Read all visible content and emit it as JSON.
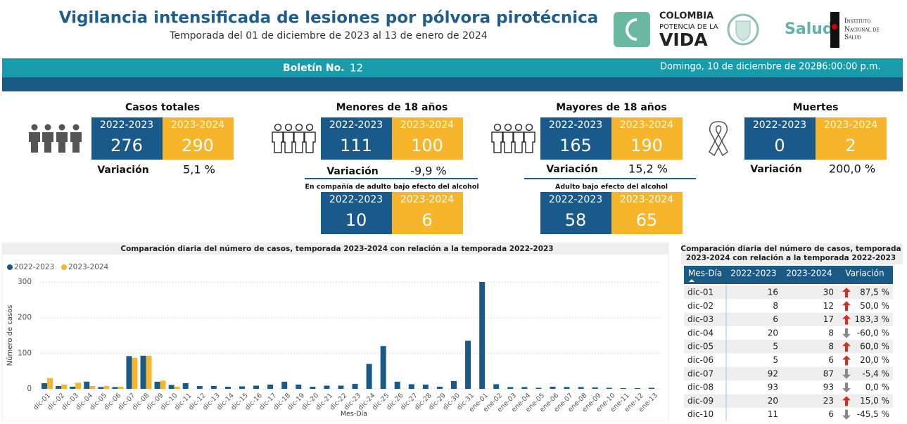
{
  "header": {
    "title": "Vigilancia intensificada de lesiones por pólvora pirotécnica",
    "subtitle": "Temporada del 01 de diciembre de 2023 al 13 de enero de 2024",
    "logo_colombia": [
      "COLOMBIA",
      "POTENCIA DE LA",
      "VIDA"
    ],
    "logo_salud": "Salud",
    "logo_ins": [
      "Instituto",
      "Nacional de",
      "Salud"
    ]
  },
  "banner": {
    "label": "Boletín No.",
    "number": 12,
    "date": "Domingo, 10 de diciembre de 2023",
    "time": "06:00:00 p.m."
  },
  "kpis": [
    {
      "title": "Casos totales",
      "labels": [
        "2022-2023",
        "2023-2024"
      ],
      "values": [
        276,
        290
      ],
      "variation_label": "Variación",
      "variation": "5,1 %"
    },
    {
      "title": "Menores de 18 años",
      "labels": [
        "2022-2023",
        "2023-2024"
      ],
      "values": [
        111,
        100
      ],
      "variation_label": "Variación",
      "variation": "-9,9 %"
    },
    {
      "title": "Mayores de 18 años",
      "labels": [
        "2022-2023",
        "2023-2024"
      ],
      "values": [
        165,
        190
      ],
      "variation_label": "Variación",
      "variation": "15,2 %"
    },
    {
      "title": "Muertes",
      "labels": [
        "2022-2023",
        "2023-2024"
      ],
      "values": [
        0,
        2
      ],
      "variation_label": "Variación",
      "variation": "200,0 %"
    }
  ],
  "sub_kpis": [
    {
      "title": "En compañía de adulto bajo efecto del alcohol",
      "labels": [
        "2022-2023",
        "2023-2024"
      ],
      "values": [
        10,
        6
      ]
    },
    {
      "title": "Adulto bajo efecto del alcohol",
      "labels": [
        "2022-2023",
        "2023-2024"
      ],
      "values": [
        58,
        65
      ]
    }
  ],
  "chart_data": {
    "type": "bar",
    "title": "Comparación diaria del número de casos, temporada 2023-2024 con relación a la temporada 2022-2023",
    "xlabel": "Mes-Día",
    "ylabel": "Número de casos",
    "ylim": [
      0,
      300
    ],
    "yticks": [
      0,
      100,
      200,
      300
    ],
    "grid": true,
    "legend": "top-left",
    "categories": [
      "dic-01",
      "dic-02",
      "dic-03",
      "dic-04",
      "dic-05",
      "dic-06",
      "dic-07",
      "dic-08",
      "dic-09",
      "dic-10",
      "dic-11",
      "dic-12",
      "dic-13",
      "dic-14",
      "dic-15",
      "dic-16",
      "dic-17",
      "dic-18",
      "dic-19",
      "dic-20",
      "dic-21",
      "dic-22",
      "dic-23",
      "dic-24",
      "dic-25",
      "dic-26",
      "dic-27",
      "dic-28",
      "dic-29",
      "dic-30",
      "dic-31",
      "ene-01",
      "ene-02",
      "ene-03",
      "ene-04",
      "ene-05",
      "ene-06",
      "ene-07",
      "ene-08",
      "ene-09",
      "ene-10",
      "ene-11",
      "ene-12",
      "ene-13"
    ],
    "series": [
      {
        "name": "2022-2023",
        "color": "#1a5a8a",
        "values": [
          16,
          8,
          6,
          20,
          5,
          5,
          92,
          93,
          20,
          11,
          16,
          8,
          8,
          6,
          7,
          9,
          12,
          20,
          12,
          6,
          9,
          9,
          14,
          70,
          120,
          20,
          13,
          12,
          6,
          22,
          135,
          300,
          13,
          5,
          5,
          3,
          6,
          5,
          5,
          4,
          3,
          2,
          2,
          3
        ]
      },
      {
        "name": "2023-2024",
        "color": "#f7b52c",
        "values": [
          30,
          12,
          17,
          8,
          8,
          6,
          87,
          93,
          23,
          6,
          null,
          null,
          null,
          null,
          null,
          null,
          null,
          null,
          null,
          null,
          null,
          null,
          null,
          null,
          null,
          null,
          null,
          null,
          null,
          null,
          null,
          null,
          null,
          null,
          null,
          null,
          null,
          null,
          null,
          null,
          null,
          null,
          null,
          null
        ]
      }
    ]
  },
  "table": {
    "title": [
      "Comparación diaria del número de casos, temporada",
      "2023-2024 con relación a la temporada 2022-2023"
    ],
    "columns": [
      "Mes-Día",
      "2022-2023",
      "2023-2024",
      "Variación"
    ],
    "rows": [
      [
        "dic-01",
        16,
        30,
        "87,5 %"
      ],
      [
        "dic-02",
        8,
        12,
        "50,0 %"
      ],
      [
        "dic-03",
        6,
        17,
        "183,3 %"
      ],
      [
        "dic-04",
        20,
        8,
        "-60,0 %"
      ],
      [
        "dic-05",
        5,
        8,
        "60,0 %"
      ],
      [
        "dic-06",
        5,
        6,
        "20,0 %"
      ],
      [
        "dic-07",
        92,
        87,
        "-5,4 %"
      ],
      [
        "dic-08",
        93,
        93,
        "0,0 %"
      ],
      [
        "dic-09",
        20,
        23,
        "15,0 %"
      ],
      [
        "dic-10",
        11,
        6,
        "-45,5 %"
      ]
    ]
  }
}
